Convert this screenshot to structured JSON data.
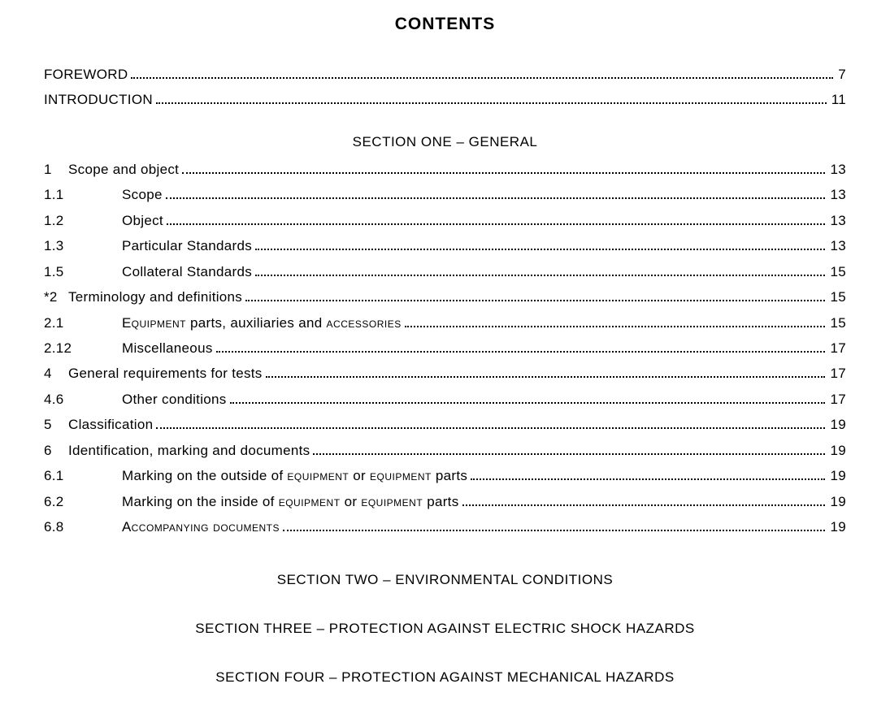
{
  "title": "CONTENTS",
  "typography": {
    "body_font_family": "Arial, Helvetica, sans-serif",
    "title_fontsize_pt": 16,
    "section_fontsize_pt": 13,
    "row_fontsize_pt": 13,
    "text_color": "#000000",
    "background_color": "#ffffff",
    "leader_style": "dotted"
  },
  "front": [
    {
      "num": "",
      "label": "FOREWORD",
      "page": "7"
    },
    {
      "num": "",
      "label": "INTRODUCTION",
      "page": "11"
    }
  ],
  "sections": [
    {
      "heading": "SECTION ONE – GENERAL",
      "entries": [
        {
          "num": "1",
          "label": "Scope and object",
          "page": "13",
          "level": 0
        },
        {
          "num": "1.1",
          "label": "Scope",
          "page": "13",
          "level": 1
        },
        {
          "num": "1.2",
          "label": "Object",
          "page": "13",
          "level": 1
        },
        {
          "num": "1.3",
          "label": "Particular Standards",
          "page": "13",
          "level": 1
        },
        {
          "num": "1.5",
          "label": "Collateral Standards",
          "page": "15",
          "level": 1
        },
        {
          "num": "*2",
          "label": "Terminology and definitions",
          "page": "15",
          "level": 0
        },
        {
          "num": "2.1",
          "label_html": "E<span class=\"smallcaps\">quipment</span> parts, auxiliaries and <span class=\"smallcaps\">accessories</span>",
          "plain_label": "Equipment parts, auxiliaries and accessories",
          "page": "15",
          "level": 1
        },
        {
          "num": "2.12",
          "label": "Miscellaneous",
          "page": "17",
          "level": 1
        },
        {
          "num": "4",
          "label": "General requirements for tests",
          "page": "17",
          "level": 0
        },
        {
          "num": "4.6",
          "label": "Other conditions",
          "page": "17",
          "level": 1
        },
        {
          "num": "5",
          "label": "Classification",
          "page": "19",
          "level": 0
        },
        {
          "num": "6",
          "label": "Identification, marking and documents",
          "page": "19",
          "level": 0
        },
        {
          "num": "6.1",
          "label_html": "Marking on the outside of <span class=\"smallcaps\">equipment</span> or <span class=\"smallcaps\">equipment</span> parts",
          "plain_label": "Marking on the outside of equipment or equipment parts",
          "page": "19",
          "level": 1
        },
        {
          "num": "6.2",
          "label_html": "Marking on the inside of <span class=\"smallcaps\">equipment</span> or <span class=\"smallcaps\">equipment</span> parts",
          "plain_label": "Marking on the inside of equipment or equipment parts",
          "page": "19",
          "level": 1
        },
        {
          "num": "6.8",
          "label_html": "A<span class=\"smallcaps\">ccompanying documents</span>",
          "plain_label": "Accompanying documents",
          "page": "19",
          "level": 1
        }
      ]
    },
    {
      "heading": "SECTION TWO – ENVIRONMENTAL CONDITIONS",
      "entries": []
    },
    {
      "heading": "SECTION THREE – PROTECTION AGAINST ELECTRIC SHOCK HAZARDS",
      "entries": []
    },
    {
      "heading": "SECTION FOUR – PROTECTION AGAINST MECHANICAL HAZARDS",
      "entries": []
    }
  ]
}
